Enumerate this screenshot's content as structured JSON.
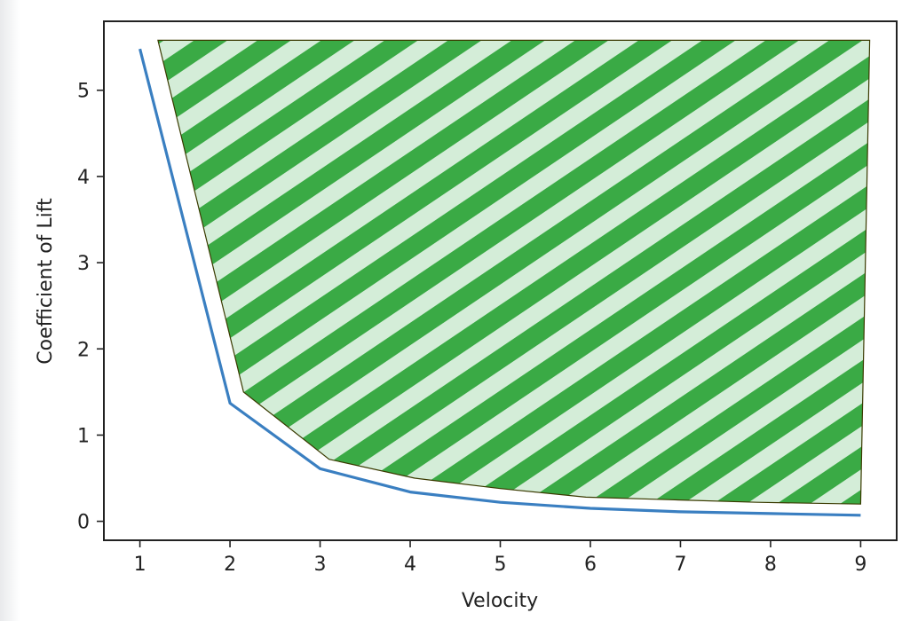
{
  "chart_data": {
    "type": "line",
    "title": "",
    "xlabel": "Velocity",
    "ylabel": "Coefficient of Lift",
    "xlim": [
      0.6,
      9.4
    ],
    "ylim": [
      -0.22,
      5.8
    ],
    "grid": false,
    "x_ticks": [
      1,
      2,
      3,
      4,
      5,
      6,
      7,
      8,
      9
    ],
    "y_ticks": [
      0,
      1,
      2,
      3,
      4,
      5
    ],
    "series": [
      {
        "x": [
          1,
          2,
          3,
          4,
          5,
          6,
          7,
          8,
          9
        ],
        "y": [
          5.48,
          1.37,
          0.61,
          0.34,
          0.22,
          0.15,
          0.11,
          0.09,
          0.07
        ],
        "color": "#3a7fc1"
      }
    ],
    "shaded_region": {
      "x": [
        1.2,
        2.15,
        3.1,
        4.05,
        5.0,
        5.95,
        6.9,
        7.85,
        9.0,
        9.1,
        1.2
      ],
      "y": [
        5.58,
        1.5,
        0.72,
        0.5,
        0.38,
        0.28,
        0.25,
        0.22,
        0.2,
        5.58,
        5.58
      ],
      "hatch_color": "#3aaa45",
      "fill_color": "#d4edd8",
      "edge_color": "#3a3a00"
    }
  }
}
